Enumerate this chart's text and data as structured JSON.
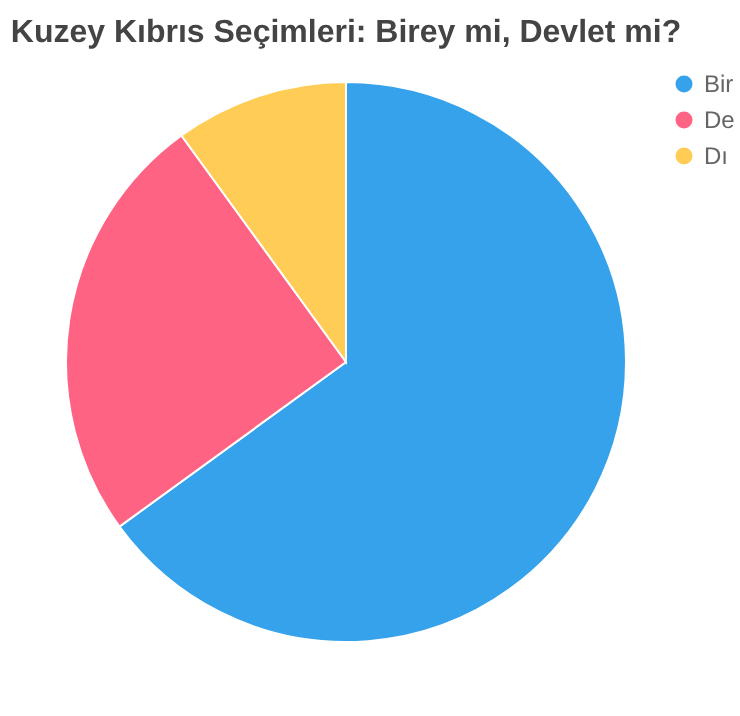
{
  "chart_data": {
    "type": "pie",
    "title": "Kuzey Kıbrıs Seçimleri: Birey mi, Devlet mi?",
    "categories": [
      "Bir",
      "De",
      "Dı"
    ],
    "values": [
      65,
      25,
      10
    ],
    "colors": [
      "#36a2eb",
      "#ff6384",
      "#ffcd56"
    ],
    "legend": "right"
  }
}
